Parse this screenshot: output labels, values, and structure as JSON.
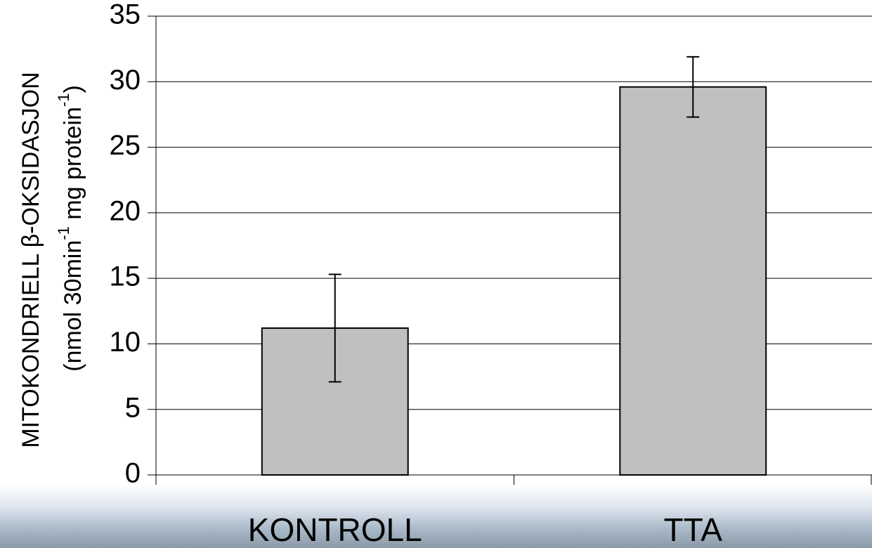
{
  "chart_data": {
    "type": "bar",
    "y_label_line1": "MITOKONDRIELL β-OKSIDASJON",
    "y_label_line2": [
      "(nmol 30min",
      "-1",
      " mg protein",
      "-1",
      ")"
    ],
    "categories": [
      "KONTROLL",
      "TTA"
    ],
    "values": [
      11.2,
      29.6
    ],
    "errors": [
      4.1,
      2.3
    ],
    "color": "#c0c0c0",
    "ylim": [
      0,
      35
    ],
    "yticks": [
      0,
      5,
      10,
      15,
      20,
      25,
      30,
      35
    ],
    "grid": true
  }
}
